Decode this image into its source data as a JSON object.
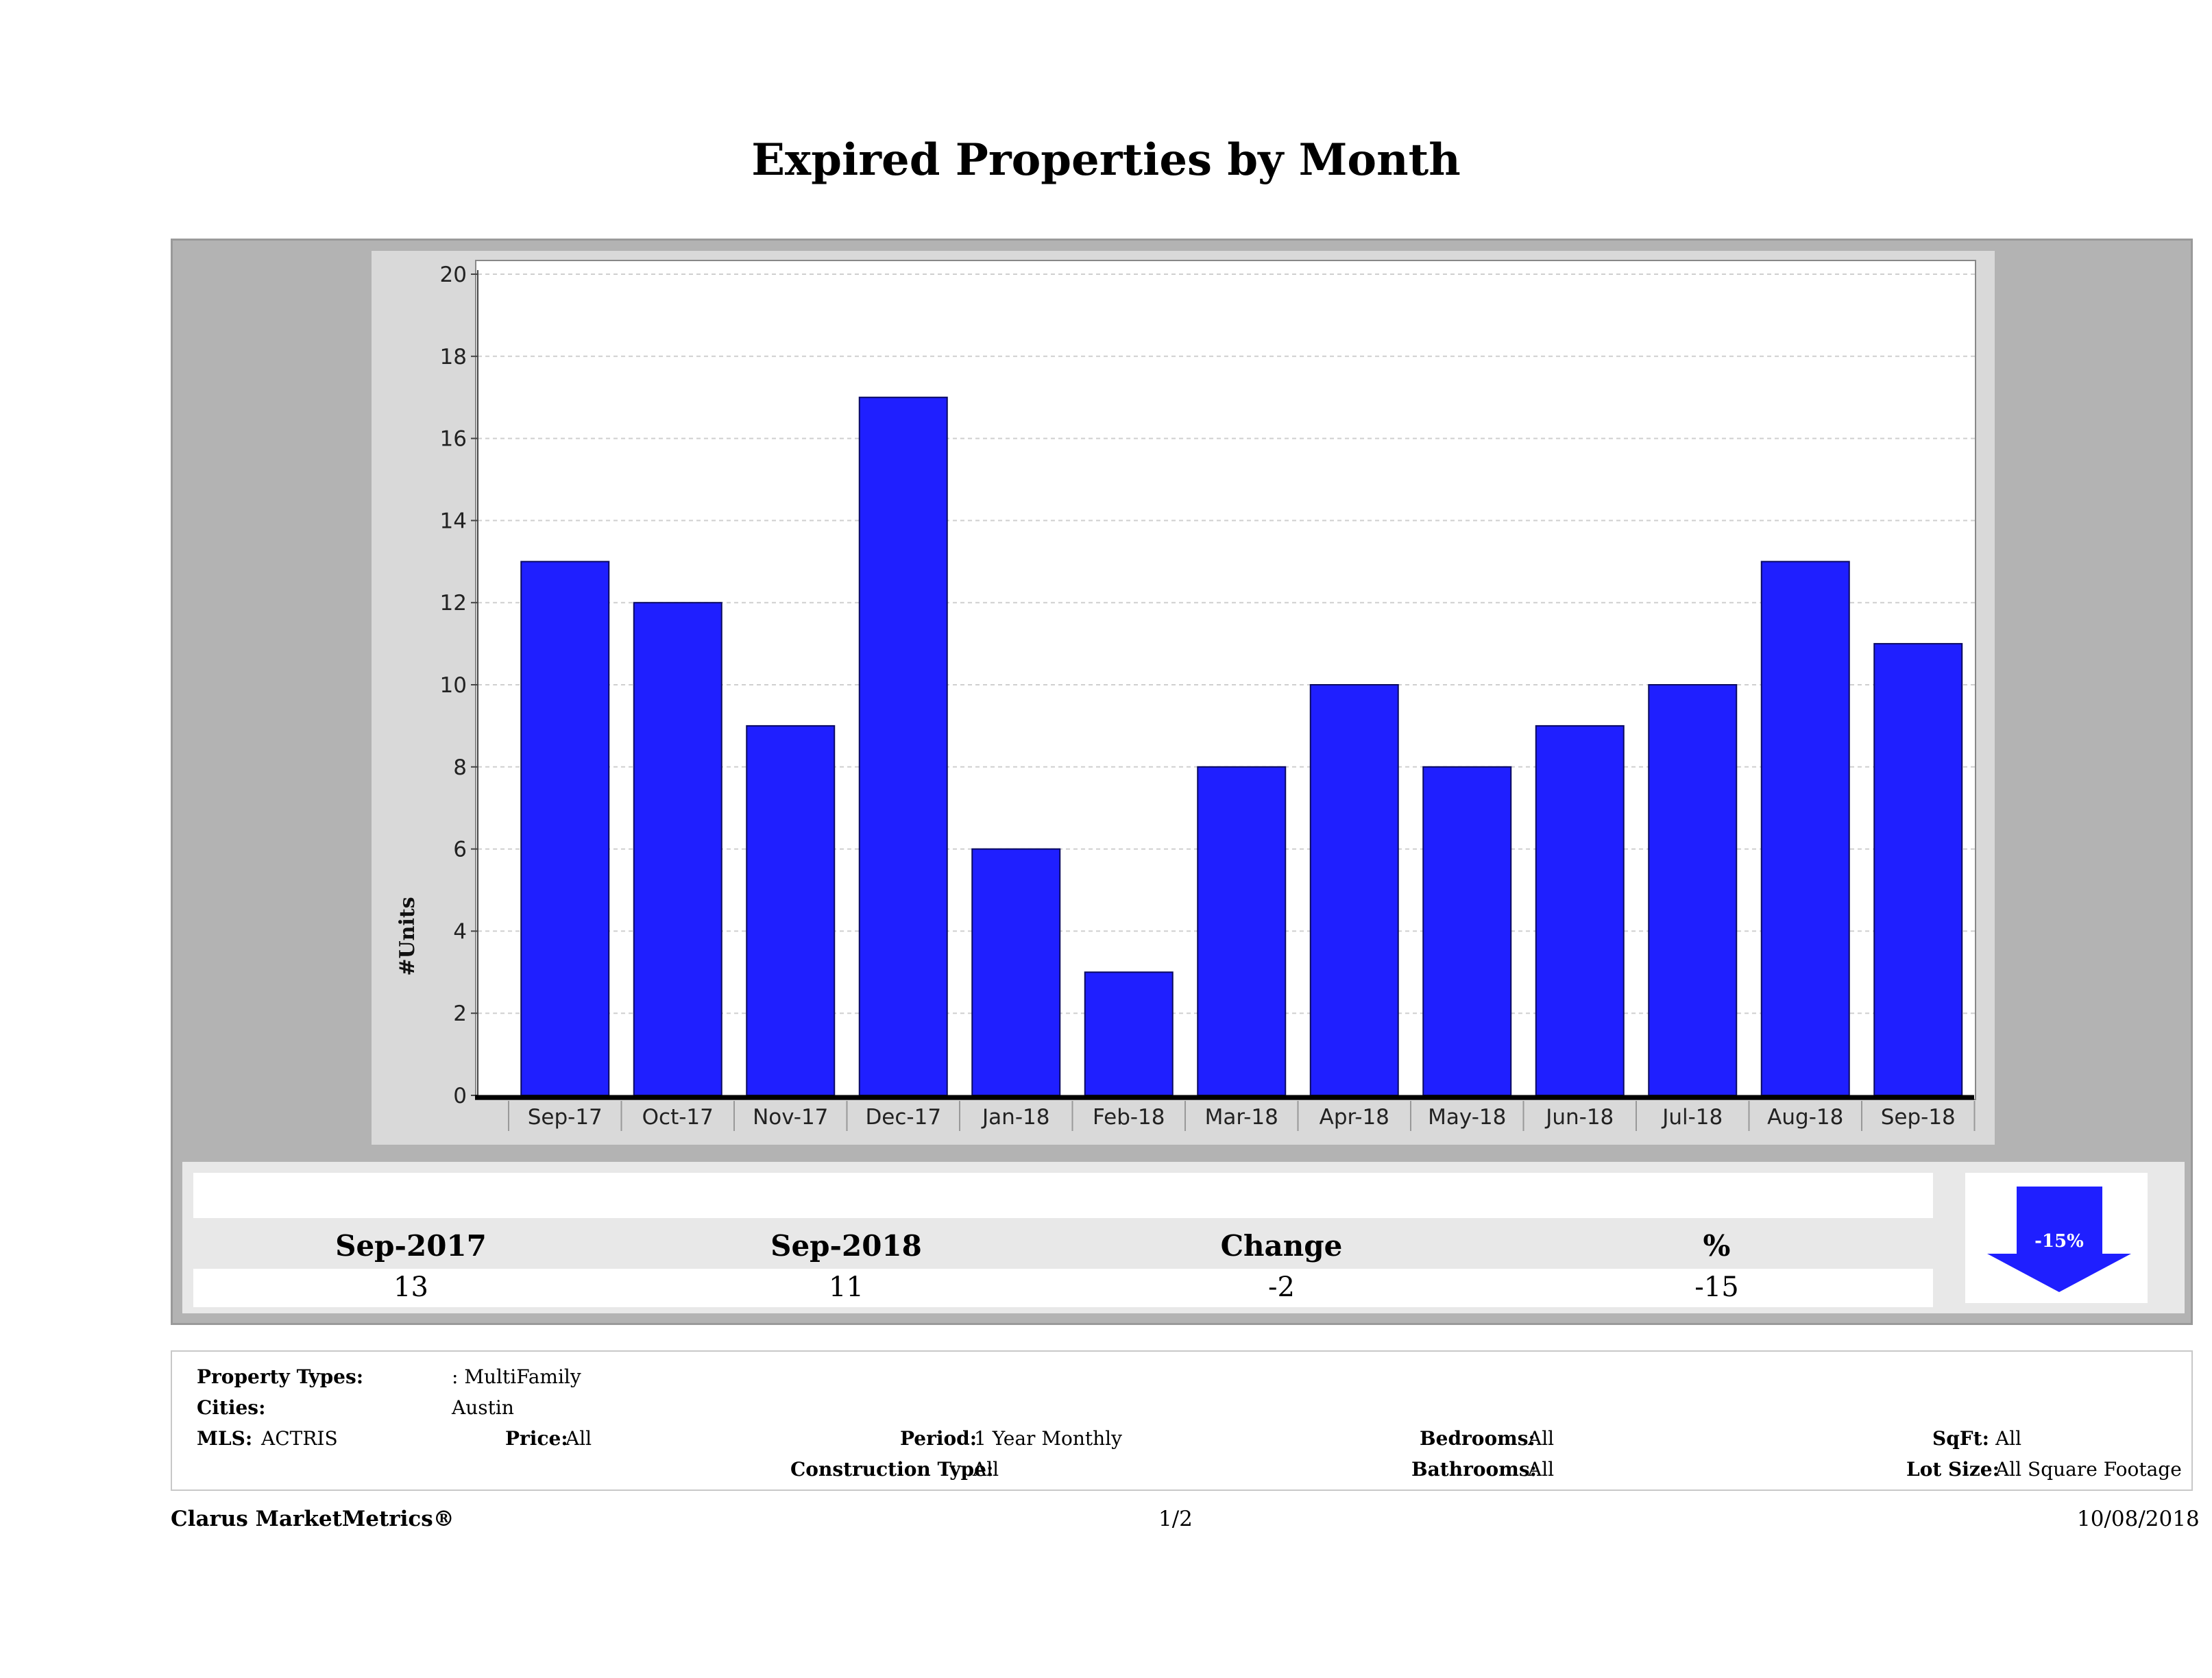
{
  "header": {
    "title": "Expired Properties by Month"
  },
  "chart_data": {
    "type": "bar",
    "title": "Expired Properties by Month",
    "xlabel": "",
    "ylabel": "#Units",
    "categories": [
      "Sep-17",
      "Oct-17",
      "Nov-17",
      "Dec-17",
      "Jan-18",
      "Feb-18",
      "Mar-18",
      "Apr-18",
      "May-18",
      "Jun-18",
      "Jul-18",
      "Aug-18",
      "Sep-18"
    ],
    "values": [
      13,
      12,
      9,
      17,
      6,
      3,
      8,
      10,
      8,
      9,
      10,
      13,
      11
    ],
    "ylim": [
      0,
      20
    ],
    "yticks": [
      0,
      2,
      4,
      6,
      8,
      10,
      12,
      14,
      16,
      18,
      20
    ],
    "grid": true,
    "bar_color": "#1f1fff"
  },
  "summary": {
    "headers": [
      "Sep-2017",
      "Sep-2018",
      "Change",
      "%"
    ],
    "values": [
      "13",
      "11",
      "-2",
      "-15"
    ],
    "badge": "-15%",
    "badge_direction": "down",
    "badge_color": "#1f1fff"
  },
  "filters": {
    "property_types_label": "Property Types:",
    "property_types_value": ": MultiFamily",
    "cities_label": "Cities:",
    "cities_value": "Austin",
    "mls_label": "MLS:",
    "mls_value": "ACTRIS",
    "price_label": "Price:",
    "price_value": "All",
    "period_label": "Period:",
    "period_value": "1 Year Monthly",
    "construction_label": "Construction Type:",
    "construction_value": "All",
    "bedrooms_label": "Bedrooms:",
    "bedrooms_value": "All",
    "bathrooms_label": "Bathrooms:",
    "bathrooms_value": "All",
    "sqft_label": "SqFt:",
    "sqft_value": "All",
    "lotsize_label": "Lot Size:",
    "lotsize_value": "All Square Footage"
  },
  "footer": {
    "brand": "Clarus MarketMetrics®",
    "page": "1/2",
    "date": "10/08/2018"
  }
}
